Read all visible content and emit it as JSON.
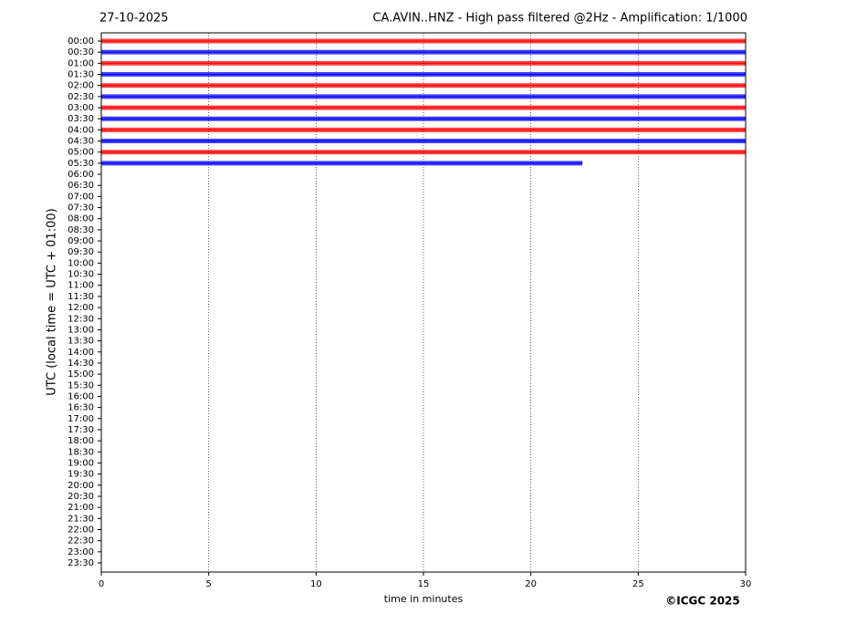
{
  "chart_data": {
    "type": "helicorder",
    "title_left": "27-10-2025",
    "title": "CA.AVIN..HNZ - High pass filtered @2Hz - Amplification: 1/1000",
    "y_label": "UTC (local time = UTC + 01:00)",
    "x_label": "time in minutes",
    "copyright": "©ICGC 2025",
    "categories": [
      "00:00",
      "00:30",
      "01:00",
      "01:30",
      "02:00",
      "02:30",
      "03:00",
      "03:30",
      "04:00",
      "04:30",
      "05:00",
      "05:30",
      "06:00",
      "06:30",
      "07:00",
      "07:30",
      "08:00",
      "08:30",
      "09:00",
      "09:30",
      "10:00",
      "10:30",
      "11:00",
      "11:30",
      "12:00",
      "12:30",
      "13:00",
      "13:30",
      "14:00",
      "14:30",
      "15:00",
      "15:30",
      "16:00",
      "16:30",
      "17:00",
      "17:30",
      "18:00",
      "18:30",
      "19:00",
      "19:30",
      "20:00",
      "20:30",
      "21:00",
      "21:30",
      "22:00",
      "22:30",
      "23:00",
      "23:30"
    ],
    "traces": [
      {
        "color": "#ff0000",
        "end": 30
      },
      {
        "color": "#0000ff",
        "end": 30
      },
      {
        "color": "#ff0000",
        "end": 30
      },
      {
        "color": "#0000ff",
        "end": 30
      },
      {
        "color": "#ff0000",
        "end": 30
      },
      {
        "color": "#0000ff",
        "end": 30
      },
      {
        "color": "#ff0000",
        "end": 30
      },
      {
        "color": "#0000ff",
        "end": 30
      },
      {
        "color": "#ff0000",
        "end": 30
      },
      {
        "color": "#0000ff",
        "end": 30
      },
      {
        "color": "#ff0000",
        "end": 30
      },
      {
        "color": "#0000ff",
        "end": 22.4
      }
    ],
    "xlim": [
      0,
      30
    ],
    "xticks": [
      0,
      5,
      10,
      15,
      20,
      25,
      30
    ],
    "grid": true
  }
}
